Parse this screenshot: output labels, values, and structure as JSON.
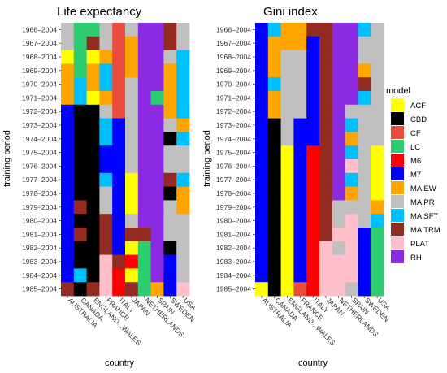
{
  "palette": {
    "ACF": "#ffff00",
    "CBD": "#000000",
    "CF": "#e84c3d",
    "LC": "#2ecc71",
    "M6": "#ff0000",
    "M7": "#0000ff",
    "MA EW": "#ffa500",
    "MA PR": "#c0c0c0",
    "MA SFT": "#00bfff",
    "MA TRM": "#922b21",
    "PLAT": "#ffc0cb",
    "RH": "#8a2be2"
  },
  "chart_data": [
    {
      "type": "heatmap",
      "title": "Life expectancy",
      "xlabel": "country",
      "ylabel": "training period",
      "x": [
        "AUSTRALIA",
        "CANADA",
        "ENGLAND...WALES",
        "FRANCE",
        "ITALY",
        "JAPAN",
        "NETHERLANDS",
        "SPAIN",
        "SWEDEN",
        "USA"
      ],
      "y": [
        "1966–2004",
        "1967–2004",
        "1968–2004",
        "1969–2004",
        "1970–2004",
        "1971–2004",
        "1972–2004",
        "1973–2004",
        "1974–2004",
        "1975–2004",
        "1976–2004",
        "1977–2004",
        "1978–2004",
        "1979–2004",
        "1980–2004",
        "1981–2004",
        "1982–2004",
        "1983–2004",
        "1984–2004",
        "1985–2004"
      ],
      "z": [
        [
          "MA PR",
          "LC",
          "LC",
          "MA PR",
          "CF",
          "MA PR",
          "RH",
          "RH",
          "MA TRM",
          "MA PR"
        ],
        [
          "MA PR",
          "LC",
          "MA TRM",
          "MA PR",
          "CF",
          "MA EW",
          "RH",
          "RH",
          "MA TRM",
          "MA PR"
        ],
        [
          "ACF",
          "LC",
          "ACF",
          "MA EW",
          "CF",
          "MA EW",
          "RH",
          "RH",
          "MA PR",
          "MA SFT"
        ],
        [
          "MA EW",
          "LC",
          "MA EW",
          "MA SFT",
          "CF",
          "MA EW",
          "RH",
          "RH",
          "MA EW",
          "MA SFT"
        ],
        [
          "MA EW",
          "MA SFT",
          "MA EW",
          "MA SFT",
          "CF",
          "MA PR",
          "RH",
          "RH",
          "MA EW",
          "MA SFT"
        ],
        [
          "MA EW",
          "MA SFT",
          "ACF",
          "MA EW",
          "CF",
          "MA PR",
          "RH",
          "LC",
          "MA EW",
          "MA SFT"
        ],
        [
          "M7",
          "CBD",
          "CBD",
          "MA PR",
          "CF",
          "MA PR",
          "RH",
          "RH",
          "MA EW",
          "MA SFT"
        ],
        [
          "M7",
          "CBD",
          "CBD",
          "MA SFT",
          "M7",
          "MA PR",
          "RH",
          "RH",
          "MA PR",
          "MA EW"
        ],
        [
          "M7",
          "CBD",
          "CBD",
          "MA SFT",
          "M7",
          "MA PR",
          "RH",
          "RH",
          "CBD",
          "MA SFT"
        ],
        [
          "M7",
          "CBD",
          "CBD",
          "M7",
          "M7",
          "MA PR",
          "RH",
          "RH",
          "MA PR",
          "MA PR"
        ],
        [
          "M7",
          "CBD",
          "CBD",
          "M7",
          "M7",
          "MA PR",
          "RH",
          "RH",
          "MA PR",
          "MA PR"
        ],
        [
          "M7",
          "CBD",
          "CBD",
          "MA SFT",
          "M7",
          "ACF",
          "RH",
          "RH",
          "MA TRM",
          "MA SFT"
        ],
        [
          "M7",
          "CBD",
          "CBD",
          "MA PR",
          "M7",
          "ACF",
          "RH",
          "RH",
          "CBD",
          "MA EW"
        ],
        [
          "M7",
          "MA TRM",
          "CBD",
          "MA PR",
          "M7",
          "ACF",
          "RH",
          "RH",
          "MA PR",
          "MA EW"
        ],
        [
          "M7",
          "CBD",
          "CBD",
          "MA TRM",
          "M7",
          "MA PR",
          "RH",
          "RH",
          "MA PR",
          "MA PR"
        ],
        [
          "M7",
          "MA TRM",
          "CBD",
          "MA TRM",
          "M7",
          "MA TRM",
          "MA TRM",
          "RH",
          "MA PR",
          "MA PR"
        ],
        [
          "M7",
          "CBD",
          "CBD",
          "MA TRM",
          "M7",
          "ACF",
          "LC",
          "RH",
          "CBD",
          "MA PR"
        ],
        [
          "M7",
          "CBD",
          "CBD",
          "PLAT",
          "MA TRM",
          "M6",
          "LC",
          "RH",
          "M7",
          "MA PR"
        ],
        [
          "M7",
          "MA SFT",
          "CBD",
          "PLAT",
          "M6",
          "ACF",
          "LC",
          "RH",
          "M7",
          "MA PR"
        ],
        [
          "MA TRM",
          "CBD",
          "MA TRM",
          "PLAT",
          "M6",
          "MA TRM",
          "LC",
          "MA EW",
          "M7",
          "PLAT"
        ]
      ]
    },
    {
      "type": "heatmap",
      "title": "Gini index",
      "xlabel": "country",
      "ylabel": "training period",
      "x": [
        "AUSTRALIA",
        "CANADA",
        "ENGLAND...WALES",
        "FRANCE",
        "ITALY",
        "JAPAN",
        "NETHERLANDS",
        "SPAIN",
        "SWEDEN",
        "USA"
      ],
      "y": [
        "1966–2004",
        "1967–2004",
        "1968–2004",
        "1969–2004",
        "1970–2004",
        "1971–2004",
        "1972–2004",
        "1973–2004",
        "1974–2004",
        "1975–2004",
        "1976–2004",
        "1977–2004",
        "1978–2004",
        "1979–2004",
        "1980–2004",
        "1981–2004",
        "1982–2004",
        "1983–2004",
        "1984–2004",
        "1985–2004"
      ],
      "z": [
        [
          "M7",
          "MA SFT",
          "MA EW",
          "MA EW",
          "MA TRM",
          "MA TRM",
          "RH",
          "RH",
          "MA SFT",
          "MA PR"
        ],
        [
          "M7",
          "MA EW",
          "MA EW",
          "MA EW",
          "M7",
          "MA TRM",
          "RH",
          "RH",
          "MA PR",
          "MA PR"
        ],
        [
          "M7",
          "MA EW",
          "MA PR",
          "MA PR",
          "M7",
          "MA TRM",
          "RH",
          "RH",
          "MA PR",
          "MA PR"
        ],
        [
          "M7",
          "MA EW",
          "MA PR",
          "MA PR",
          "M7",
          "MA TRM",
          "RH",
          "RH",
          "MA EW",
          "MA PR"
        ],
        [
          "M7",
          "MA SFT",
          "MA PR",
          "MA PR",
          "M7",
          "MA TRM",
          "RH",
          "RH",
          "MA TRM",
          "MA PR"
        ],
        [
          "M7",
          "MA EW",
          "MA PR",
          "MA PR",
          "M7",
          "MA TRM",
          "RH",
          "RH",
          "MA SFT",
          "MA PR"
        ],
        [
          "M7",
          "MA EW",
          "MA PR",
          "MA PR",
          "M7",
          "MA TRM",
          "RH",
          "MA PR",
          "MA PR",
          "MA PR"
        ],
        [
          "M7",
          "CBD",
          "MA PR",
          "M7",
          "M7",
          "MA TRM",
          "RH",
          "MA SFT",
          "MA PR",
          "MA PR"
        ],
        [
          "M7",
          "CBD",
          "MA PR",
          "M7",
          "M7",
          "MA TRM",
          "RH",
          "MA EW",
          "MA PR",
          "MA PR"
        ],
        [
          "M7",
          "CBD",
          "ACF",
          "M7",
          "M6",
          "MA TRM",
          "RH",
          "MA SFT",
          "MA PR",
          "ACF"
        ],
        [
          "M7",
          "CBD",
          "ACF",
          "M7",
          "M6",
          "MA TRM",
          "RH",
          "PLAT",
          "MA PR",
          "ACF"
        ],
        [
          "M7",
          "CBD",
          "ACF",
          "M7",
          "M6",
          "MA TRM",
          "RH",
          "MA SFT",
          "MA PR",
          "ACF"
        ],
        [
          "M7",
          "CBD",
          "ACF",
          "M7",
          "M6",
          "MA TRM",
          "RH",
          "MA EW",
          "MA PR",
          "ACF"
        ],
        [
          "M7",
          "CBD",
          "ACF",
          "M7",
          "M6",
          "MA TRM",
          "MA PR",
          "MA PR",
          "MA PR",
          "MA EW"
        ],
        [
          "M7",
          "CBD",
          "ACF",
          "M7",
          "M6",
          "MA TRM",
          "MA PR",
          "PLAT",
          "MA PR",
          "MA SFT"
        ],
        [
          "M7",
          "CBD",
          "ACF",
          "M7",
          "M6",
          "MA TRM",
          "PLAT",
          "PLAT",
          "M7",
          "LC"
        ],
        [
          "M7",
          "CBD",
          "ACF",
          "M7",
          "M6",
          "PLAT",
          "MA PR",
          "PLAT",
          "M7",
          "LC"
        ],
        [
          "M7",
          "CBD",
          "ACF",
          "M7",
          "M6",
          "PLAT",
          "PLAT",
          "PLAT",
          "M7",
          "LC"
        ],
        [
          "M7",
          "CBD",
          "ACF",
          "M7",
          "M6",
          "PLAT",
          "PLAT",
          "PLAT",
          "M7",
          "LC"
        ],
        [
          "ACF",
          "CBD",
          "ACF",
          "CF",
          "M6",
          "PLAT",
          "PLAT",
          "MA PR",
          "M7",
          "LC"
        ]
      ]
    }
  ],
  "legend": {
    "title": "model",
    "entries": [
      "ACF",
      "CBD",
      "CF",
      "LC",
      "M6",
      "M7",
      "MA EW",
      "MA PR",
      "MA SFT",
      "MA TRM",
      "PLAT",
      "RH"
    ]
  }
}
